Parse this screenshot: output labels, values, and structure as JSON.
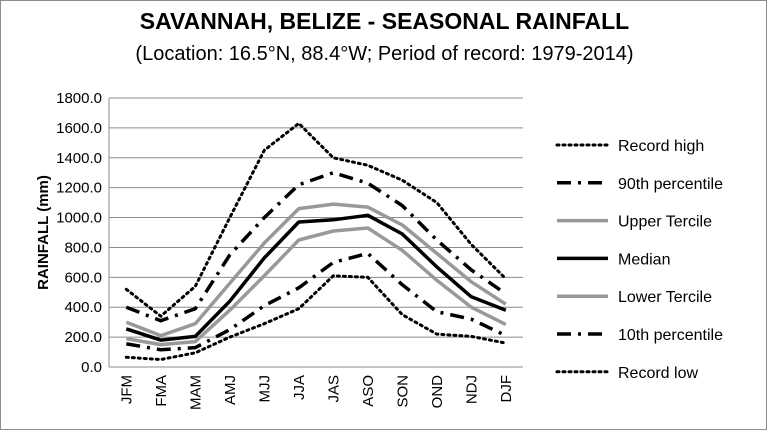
{
  "chart_data": {
    "type": "line",
    "title": "SAVANNAH, BELIZE - SEASONAL RAINFALL",
    "subtitle": "(Location: 16.5°N, 88.4°W; Period of record: 1979-2014)",
    "xlabel": "",
    "ylabel": "RAINFALL (mm)",
    "ylim": [
      0,
      1800
    ],
    "yticks": [
      "0.0",
      "200.0",
      "400.0",
      "600.0",
      "800.0",
      "1000.0",
      "1200.0",
      "1400.0",
      "1600.0",
      "1800.0"
    ],
    "grid": true,
    "legend_position": "right",
    "categories": [
      "JFM",
      "FMA",
      "MAM",
      "AMJ",
      "MJJ",
      "JJA",
      "JAS",
      "ASO",
      "SON",
      "OND",
      "NDJ",
      "DJF"
    ],
    "series": [
      {
        "name": "Record high",
        "style": "dotted",
        "color": "#000000",
        "values": [
          520,
          340,
          540,
          1000,
          1450,
          1630,
          1400,
          1350,
          1250,
          1100,
          820,
          590
        ]
      },
      {
        "name": "90th percentile",
        "style": "dashdot",
        "color": "#000000",
        "values": [
          400,
          310,
          390,
          750,
          1000,
          1220,
          1300,
          1230,
          1080,
          850,
          650,
          490
        ]
      },
      {
        "name": "Upper Tercile",
        "style": "solid",
        "color": "#999999",
        "values": [
          300,
          210,
          290,
          560,
          830,
          1060,
          1090,
          1070,
          950,
          760,
          570,
          420
        ]
      },
      {
        "name": "Median",
        "style": "solid",
        "color": "#000000",
        "values": [
          255,
          180,
          205,
          440,
          730,
          970,
          985,
          1015,
          890,
          670,
          470,
          380
        ]
      },
      {
        "name": "Lower Tercile",
        "style": "solid",
        "color": "#999999",
        "values": [
          190,
          150,
          170,
          380,
          610,
          850,
          910,
          930,
          780,
          580,
          400,
          285
        ]
      },
      {
        "name": "10th percentile",
        "style": "dashdot",
        "color": "#000000",
        "values": [
          155,
          115,
          130,
          250,
          410,
          530,
          700,
          760,
          550,
          370,
          320,
          210
        ]
      },
      {
        "name": "Record low",
        "style": "dotted",
        "color": "#000000",
        "values": [
          65,
          50,
          95,
          200,
          290,
          390,
          610,
          600,
          350,
          220,
          205,
          160
        ]
      }
    ]
  }
}
